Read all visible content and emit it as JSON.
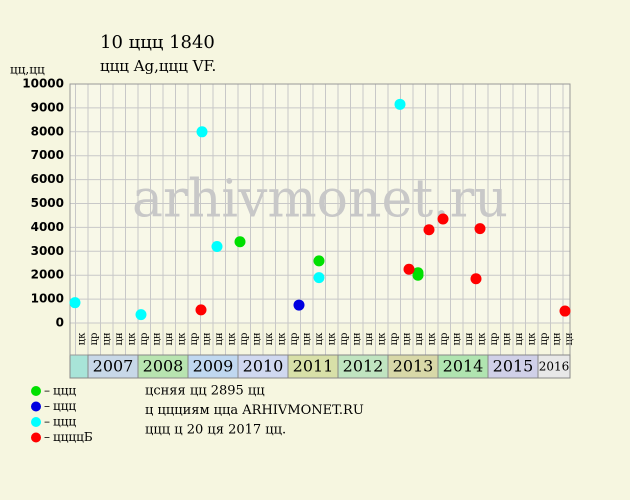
{
  "chart_data": {
    "type": "scatter",
    "title": "10 ццц 1840",
    "subtitle": "ццц Ag,ццц VF.",
    "y_label": "цц,цц",
    "watermark": "arhivmonet.ru",
    "xlim": [
      2006.64,
      2016.64
    ],
    "xticks": [
      2007,
      2008,
      2009,
      2010,
      2011,
      2012,
      2013,
      2014,
      2015,
      2016
    ],
    "ylim": [
      0,
      10000
    ],
    "yticks": [
      0,
      1000,
      2000,
      3000,
      4000,
      5000,
      6000,
      7000,
      8000,
      9000,
      10000
    ],
    "grid": true,
    "column_labels": [
      "цк",
      "цр",
      "цн",
      "цн",
      "цк",
      "цр",
      "цн",
      "цн",
      "цк",
      "цр",
      "цн",
      "цн",
      "цк",
      "цр",
      "цн",
      "цк",
      "цк",
      "цр",
      "цн",
      "цк",
      "цк",
      "цр",
      "цн",
      "цн",
      "цк",
      "цр",
      "цн",
      "цн",
      "цк",
      "цр",
      "цн",
      "цн",
      "цк",
      "цр",
      "цн",
      "цн",
      "цк",
      "цр",
      "цн",
      "цн"
    ],
    "series": [
      {
        "name": "ццц",
        "color": "#00e000",
        "x": [
          2010.04,
          2011.62,
          2013.6,
          2013.6
        ],
        "values": [
          3400,
          2600,
          2100,
          2000
        ]
      },
      {
        "name": "ццц",
        "color": "#0000e0",
        "x": [
          2011.22
        ],
        "values": [
          750
        ]
      },
      {
        "name": "ццц",
        "color": "#00ffff",
        "x": [
          2006.74,
          2008.06,
          2009.28,
          2009.58,
          2011.62,
          2013.24
        ],
        "values": [
          850,
          350,
          8000,
          3200,
          1900,
          9150
        ]
      },
      {
        "name": "ццццБ",
        "color": "#ff0000",
        "x": [
          2009.26,
          2013.42,
          2013.82,
          2014.1,
          2014.76,
          2014.84,
          2016.54
        ],
        "values": [
          550,
          2250,
          3900,
          4350,
          1850,
          3950,
          500
        ]
      }
    ],
    "notes": [
      "цcняя цц 2895 цц",
      "ц ццциям цца ARHIVMONET.RU",
      "ццц ц 20 ця 2017 цц."
    ]
  }
}
